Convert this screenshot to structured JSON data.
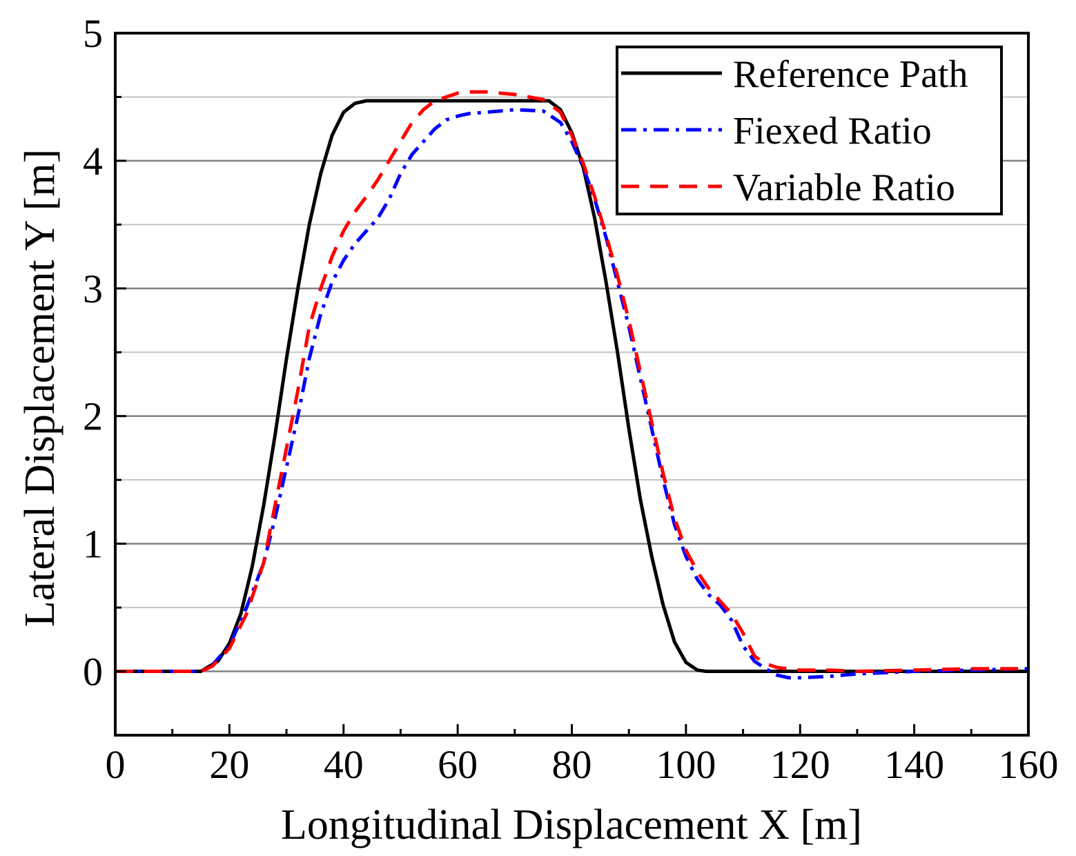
{
  "chart_data": {
    "type": "line",
    "title": "",
    "xlabel": "Longitudinal Displacement X [m]",
    "ylabel": "Lateral Displacement Y [m]",
    "xlim": [
      0,
      160
    ],
    "ylim": [
      -0.5,
      5
    ],
    "xticks": [
      0,
      20,
      40,
      60,
      80,
      100,
      120,
      140,
      160
    ],
    "yticks": [
      0,
      1,
      2,
      3,
      4,
      5
    ],
    "grid": "horizontal",
    "legend_position": "top-right",
    "series": [
      {
        "name": "Reference Path",
        "color": "#000000",
        "style": "solid",
        "x": [
          0,
          15,
          18,
          20,
          22,
          24,
          26,
          28,
          30,
          32,
          34,
          36,
          38,
          40,
          42,
          44,
          60,
          76,
          78,
          80,
          82,
          84,
          86,
          88,
          90,
          92,
          94,
          96,
          98,
          100,
          102,
          103.5,
          120,
          140,
          160
        ],
        "y": [
          0,
          0,
          0.08,
          0.22,
          0.45,
          0.82,
          1.3,
          1.85,
          2.45,
          3.0,
          3.5,
          3.9,
          4.2,
          4.38,
          4.45,
          4.47,
          4.47,
          4.47,
          4.4,
          4.22,
          3.95,
          3.55,
          3.05,
          2.5,
          1.9,
          1.35,
          0.9,
          0.52,
          0.23,
          0.07,
          0.01,
          0,
          0,
          0,
          0
        ]
      },
      {
        "name": "Fiexed Ratio",
        "color": "#0000ff",
        "style": "dashdot",
        "x": [
          0,
          15,
          17,
          20,
          23,
          26,
          28,
          30,
          32,
          34,
          36,
          38,
          40,
          42,
          44,
          46,
          48,
          50,
          52,
          54,
          56,
          58,
          60,
          62,
          65,
          70,
          75,
          78,
          80,
          82,
          84,
          86,
          88,
          90,
          92,
          94,
          96,
          98,
          100,
          102,
          104,
          106,
          108,
          110,
          112,
          114,
          116,
          118,
          120,
          125,
          130,
          140,
          150,
          160
        ],
        "y": [
          0,
          0,
          0.05,
          0.2,
          0.5,
          0.85,
          1.2,
          1.6,
          2.0,
          2.45,
          2.8,
          3.05,
          3.22,
          3.35,
          3.45,
          3.55,
          3.7,
          3.9,
          4.05,
          4.15,
          4.25,
          4.32,
          4.35,
          4.37,
          4.38,
          4.4,
          4.39,
          4.3,
          4.15,
          3.95,
          3.7,
          3.4,
          3.05,
          2.7,
          2.3,
          1.9,
          1.5,
          1.15,
          0.9,
          0.72,
          0.6,
          0.52,
          0.4,
          0.2,
          0.08,
          0.02,
          -0.03,
          -0.05,
          -0.05,
          -0.04,
          -0.02,
          0,
          0.01,
          0.02
        ]
      },
      {
        "name": "Variable Ratio",
        "color": "#ff0000",
        "style": "dashed",
        "x": [
          0,
          15,
          17,
          20,
          23,
          26,
          28,
          30,
          32,
          34,
          36,
          38,
          40,
          42,
          44,
          46,
          48,
          50,
          52,
          54,
          56,
          58,
          60,
          62,
          65,
          70,
          75,
          78,
          80,
          82,
          84,
          86,
          88,
          90,
          92,
          94,
          96,
          98,
          100,
          102,
          104,
          106,
          108,
          110,
          112,
          114,
          116,
          118,
          120,
          125,
          130,
          140,
          150,
          160
        ],
        "y": [
          0,
          0,
          0.04,
          0.18,
          0.45,
          0.85,
          1.3,
          1.75,
          2.2,
          2.7,
          3.0,
          3.25,
          3.45,
          3.6,
          3.72,
          3.85,
          4.0,
          4.15,
          4.3,
          4.4,
          4.47,
          4.5,
          4.53,
          4.54,
          4.54,
          4.52,
          4.48,
          4.38,
          4.2,
          3.98,
          3.72,
          3.42,
          3.1,
          2.75,
          2.35,
          1.95,
          1.55,
          1.2,
          0.95,
          0.78,
          0.65,
          0.55,
          0.45,
          0.3,
          0.12,
          0.06,
          0.03,
          0.02,
          0.01,
          0.01,
          0,
          0.01,
          0.02,
          0.02
        ]
      }
    ]
  }
}
